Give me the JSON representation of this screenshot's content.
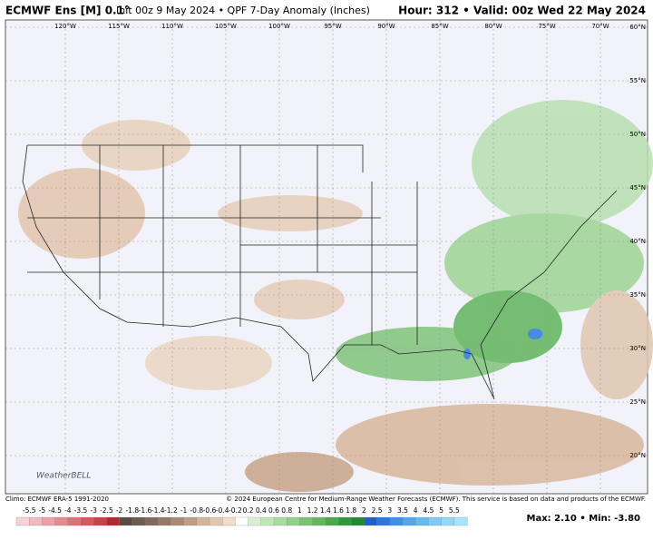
{
  "header": {
    "model": "ECMWF Ens [M] 0.1°",
    "subtitle": "Init 00z 9 May 2024 • QPF 7-Day Anomaly (Inches)",
    "valid": "Hour: 312 • Valid: 00z Wed 22 May 2024"
  },
  "map": {
    "lon_labels": [
      "120°W",
      "115°W",
      "110°W",
      "105°W",
      "100°W",
      "95°W",
      "90°W",
      "85°W",
      "80°W",
      "75°W",
      "70°W"
    ],
    "lat_labels": [
      "60°N",
      "55°N",
      "50°N",
      "45°N",
      "40°N",
      "35°N",
      "30°N",
      "25°N",
      "20°N"
    ],
    "logo": "WeatherBELL"
  },
  "footer": {
    "climo": "Climo: ECMWF ERA-5 1991-2020",
    "copyright": "© 2024 European Centre for Medium-Range Weather Forecasts (ECMWF). This service is based on data and products of the ECMWF."
  },
  "colorbar": {
    "labels": [
      "-5.5",
      "-5",
      "-4.5",
      "-4",
      "-3.5",
      "-3",
      "-2.5",
      "-2",
      "-1.8",
      "-1.6",
      "-1.4",
      "-1.2",
      "-1",
      "-0.8",
      "-0.6",
      "-0.4",
      "-0.2",
      "0.2",
      "0.4",
      "0.6",
      "0.8",
      "1",
      "1.2",
      "1.4",
      "1.6",
      "1.8",
      "2",
      "2.5",
      "3",
      "3.5",
      "4",
      "4.5",
      "5",
      "5.5"
    ],
    "colors": [
      "#f7d0d8",
      "#f2b8c0",
      "#ee9fa8",
      "#e88890",
      "#e07078",
      "#d55860",
      "#c84048",
      "#b02830",
      "#5a4a44",
      "#6e5a50",
      "#82685a",
      "#967866",
      "#aa8a74",
      "#be9e86",
      "#d2b49a",
      "#e2c8b0",
      "#f0dcc8",
      "#ffffff",
      "#d8f0d0",
      "#c0e6b8",
      "#a8dca0",
      "#90d088",
      "#78c470",
      "#60b85c",
      "#48a84c",
      "#30983c",
      "#208830",
      "#1e5fc8",
      "#2a78dc",
      "#3c90e8",
      "#50a6ef",
      "#66baf2",
      "#7ccaf5",
      "#92d8f8",
      "#a8e4fa"
    ]
  },
  "stats": "Max: 2.10 • Min: -3.80"
}
